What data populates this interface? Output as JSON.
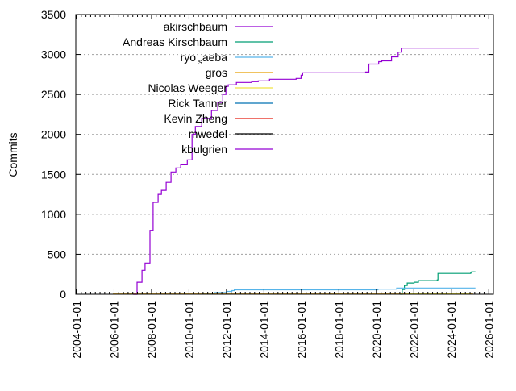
{
  "chart_data": {
    "type": "line",
    "title": "",
    "xlabel": "",
    "ylabel": "Commits",
    "x_type": "date",
    "xlim": [
      "2004-01-01",
      "2026-04-01"
    ],
    "ylim": [
      0,
      3500
    ],
    "x_ticks": [
      "2004-01-01",
      "2006-01-01",
      "2008-01-01",
      "2010-01-01",
      "2012-01-01",
      "2014-01-01",
      "2016-01-01",
      "2018-01-01",
      "2020-01-01",
      "2022-01-01",
      "2024-01-01",
      "2026-01-01"
    ],
    "y_ticks": [
      0,
      500,
      1000,
      1500,
      2000,
      2500,
      3000,
      3500
    ],
    "grid": "y dotted",
    "legend_position": "top-left",
    "step": "post",
    "series": [
      {
        "name": "akirschbaum",
        "color": "#9400d3",
        "points": [
          [
            "2007-01-08",
            0
          ],
          [
            "2007-03-25",
            150
          ],
          [
            "2007-06-28",
            300
          ],
          [
            "2007-08-28",
            390
          ],
          [
            "2007-12-01",
            800
          ],
          [
            "2008-02-01",
            1150
          ],
          [
            "2008-05-08",
            1250
          ],
          [
            "2008-07-12",
            1300
          ],
          [
            "2008-10-12",
            1400
          ],
          [
            "2009-01-15",
            1530
          ],
          [
            "2009-04-20",
            1580
          ],
          [
            "2009-07-22",
            1620
          ],
          [
            "2009-11-28",
            1680
          ],
          [
            "2010-03-01",
            2000
          ],
          [
            "2010-05-05",
            2100
          ],
          [
            "2010-09-05",
            2200
          ],
          [
            "2011-03-15",
            2300
          ],
          [
            "2011-07-15",
            2400
          ],
          [
            "2011-10-20",
            2500
          ],
          [
            "2011-12-20",
            2600
          ],
          [
            "2012-02-05",
            2620
          ],
          [
            "2012-07-12",
            2650
          ],
          [
            "2013-05-08",
            2660
          ],
          [
            "2013-09-12",
            2670
          ],
          [
            "2014-04-20",
            2690
          ],
          [
            "2015-09-20",
            2700
          ],
          [
            "2015-12-25",
            2740
          ],
          [
            "2016-01-25",
            2770
          ],
          [
            "2019-06-05",
            2780
          ],
          [
            "2019-08-08",
            2880
          ],
          [
            "2020-02-15",
            2910
          ],
          [
            "2020-04-15",
            2920
          ],
          [
            "2020-10-22",
            2970
          ],
          [
            "2021-03-01",
            3030
          ],
          [
            "2021-05-01",
            3080
          ],
          [
            "2025-06-20",
            3080
          ]
        ]
      },
      {
        "name": "Andreas Kirschbaum",
        "color": "#009e73",
        "points": [
          [
            "2021-04-10",
            0
          ],
          [
            "2021-05-20",
            60
          ],
          [
            "2021-07-01",
            110
          ],
          [
            "2021-08-25",
            140
          ],
          [
            "2022-01-05",
            150
          ],
          [
            "2022-04-01",
            170
          ],
          [
            "2023-04-01",
            180
          ],
          [
            "2023-04-15",
            260
          ],
          [
            "2025-01-15",
            270
          ],
          [
            "2025-02-01",
            280
          ],
          [
            "2025-04-15",
            280
          ]
        ]
      },
      {
        "name": "ryo_saeba",
        "color": "#56b4e9",
        "points": [
          [
            "2010-09-05",
            5
          ],
          [
            "2011-05-20",
            20
          ],
          [
            "2012-01-01",
            35
          ],
          [
            "2012-04-15",
            45
          ],
          [
            "2012-06-01",
            55
          ],
          [
            "2020-02-01",
            65
          ],
          [
            "2021-02-01",
            78
          ],
          [
            "2025-04-15",
            78
          ]
        ]
      },
      {
        "name": "gros",
        "color": "#e69f00",
        "points": [
          [
            "2005-12-10",
            12
          ],
          [
            "2025-03-01",
            12
          ]
        ]
      },
      {
        "name": "Nicolas Weeger",
        "color": "#f0e442",
        "points": [
          [
            "2021-08-01",
            8
          ],
          [
            "2025-01-01",
            15
          ]
        ]
      },
      {
        "name": "Rick Tanner",
        "color": "#0072b2",
        "points": []
      },
      {
        "name": "Kevin Zheng",
        "color": "#e51e10",
        "points": []
      },
      {
        "name": "mwedel",
        "color": "#000000",
        "points": []
      },
      {
        "name": "kbulgrien",
        "color": "#9400d3",
        "points": [
          [
            "2007-01-08",
            0
          ],
          [
            "2007-04-01",
            0
          ]
        ]
      }
    ]
  }
}
